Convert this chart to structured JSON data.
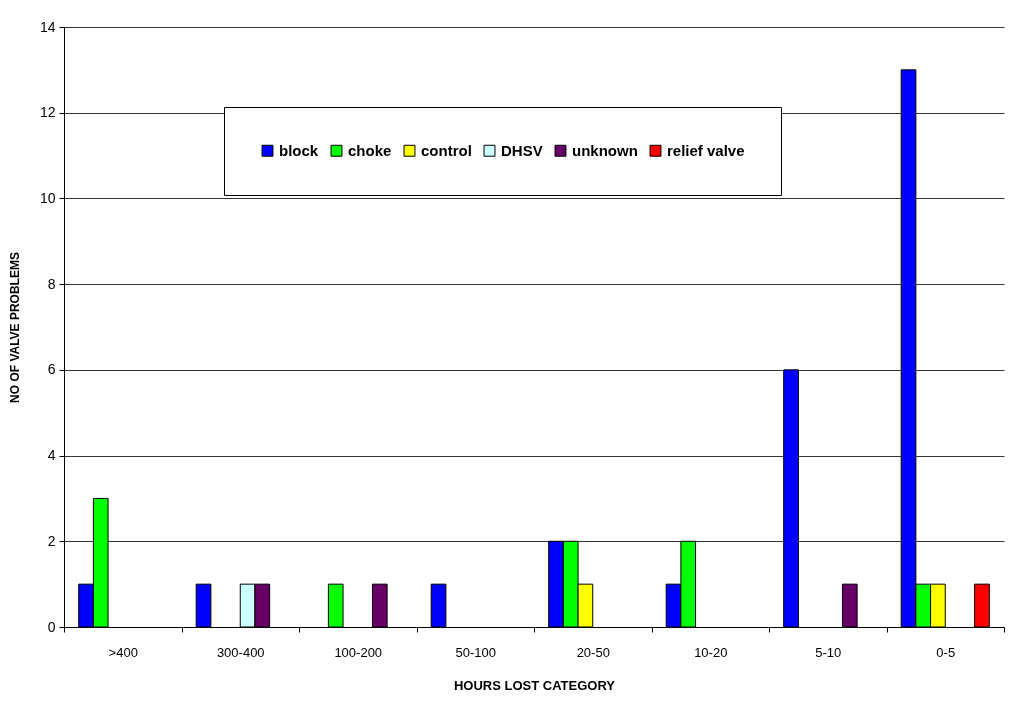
{
  "chart_data": {
    "type": "bar",
    "xlabel": "HOURS LOST CATEGORY",
    "ylabel": "NO OF VALVE PROBLEMS",
    "categories": [
      ">400",
      "300-400",
      "100-200",
      "50-100",
      "20-50",
      "10-20",
      "5-10",
      "0-5"
    ],
    "series": [
      {
        "name": "block",
        "color": "#0000ff",
        "values": [
          1,
          1,
          0,
          1,
          2,
          1,
          6,
          13
        ]
      },
      {
        "name": "choke",
        "color": "#00ff00",
        "values": [
          3,
          0,
          1,
          0,
          2,
          2,
          0,
          1
        ]
      },
      {
        "name": "control",
        "color": "#ffff00",
        "values": [
          0,
          0,
          0,
          0,
          1,
          0,
          0,
          1
        ]
      },
      {
        "name": "DHSV",
        "color": "#ccffff",
        "values": [
          0,
          1,
          0,
          0,
          0,
          0,
          0,
          0
        ]
      },
      {
        "name": "unknown",
        "color": "#660066",
        "values": [
          0,
          1,
          1,
          0,
          0,
          0,
          1,
          0
        ]
      },
      {
        "name": "relief valve",
        "color": "#ff0000",
        "values": [
          0,
          0,
          0,
          0,
          0,
          0,
          0,
          1
        ]
      }
    ],
    "ylim": [
      0,
      14
    ],
    "yticks": [
      0,
      2,
      4,
      6,
      8,
      10,
      12,
      14
    ],
    "grid": "y",
    "legend": "top"
  }
}
